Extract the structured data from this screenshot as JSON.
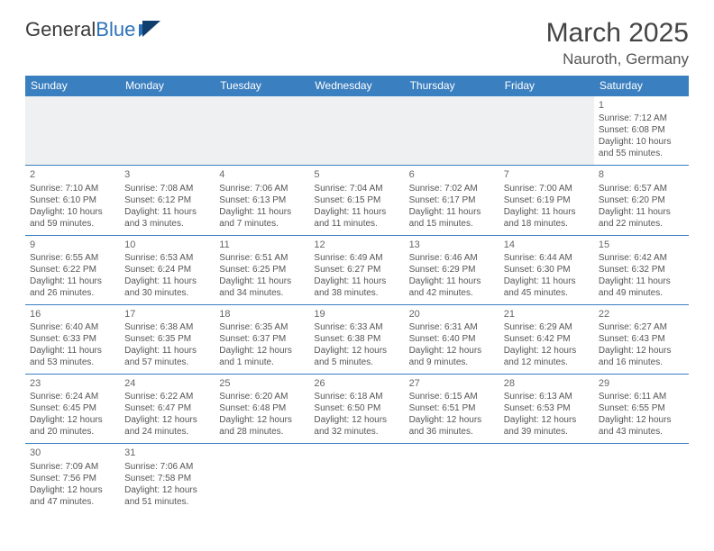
{
  "brand": {
    "word1": "General",
    "word2": "Blue"
  },
  "header": {
    "title": "March 2025",
    "location": "Nauroth, Germany"
  },
  "colors": {
    "header_bg": "#3a7fc0",
    "header_fg": "#ffffff",
    "cell_border": "#3a7fc0",
    "blank_bg": "#eef0f1",
    "text": "#555555",
    "brand_blue": "#2c71b8"
  },
  "weekdays": [
    "Sunday",
    "Monday",
    "Tuesday",
    "Wednesday",
    "Thursday",
    "Friday",
    "Saturday"
  ],
  "weeks": [
    [
      null,
      null,
      null,
      null,
      null,
      null,
      {
        "d": "1",
        "sr": "Sunrise: 7:12 AM",
        "ss": "Sunset: 6:08 PM",
        "dl": "Daylight: 10 hours and 55 minutes."
      }
    ],
    [
      {
        "d": "2",
        "sr": "Sunrise: 7:10 AM",
        "ss": "Sunset: 6:10 PM",
        "dl": "Daylight: 10 hours and 59 minutes."
      },
      {
        "d": "3",
        "sr": "Sunrise: 7:08 AM",
        "ss": "Sunset: 6:12 PM",
        "dl": "Daylight: 11 hours and 3 minutes."
      },
      {
        "d": "4",
        "sr": "Sunrise: 7:06 AM",
        "ss": "Sunset: 6:13 PM",
        "dl": "Daylight: 11 hours and 7 minutes."
      },
      {
        "d": "5",
        "sr": "Sunrise: 7:04 AM",
        "ss": "Sunset: 6:15 PM",
        "dl": "Daylight: 11 hours and 11 minutes."
      },
      {
        "d": "6",
        "sr": "Sunrise: 7:02 AM",
        "ss": "Sunset: 6:17 PM",
        "dl": "Daylight: 11 hours and 15 minutes."
      },
      {
        "d": "7",
        "sr": "Sunrise: 7:00 AM",
        "ss": "Sunset: 6:19 PM",
        "dl": "Daylight: 11 hours and 18 minutes."
      },
      {
        "d": "8",
        "sr": "Sunrise: 6:57 AM",
        "ss": "Sunset: 6:20 PM",
        "dl": "Daylight: 11 hours and 22 minutes."
      }
    ],
    [
      {
        "d": "9",
        "sr": "Sunrise: 6:55 AM",
        "ss": "Sunset: 6:22 PM",
        "dl": "Daylight: 11 hours and 26 minutes."
      },
      {
        "d": "10",
        "sr": "Sunrise: 6:53 AM",
        "ss": "Sunset: 6:24 PM",
        "dl": "Daylight: 11 hours and 30 minutes."
      },
      {
        "d": "11",
        "sr": "Sunrise: 6:51 AM",
        "ss": "Sunset: 6:25 PM",
        "dl": "Daylight: 11 hours and 34 minutes."
      },
      {
        "d": "12",
        "sr": "Sunrise: 6:49 AM",
        "ss": "Sunset: 6:27 PM",
        "dl": "Daylight: 11 hours and 38 minutes."
      },
      {
        "d": "13",
        "sr": "Sunrise: 6:46 AM",
        "ss": "Sunset: 6:29 PM",
        "dl": "Daylight: 11 hours and 42 minutes."
      },
      {
        "d": "14",
        "sr": "Sunrise: 6:44 AM",
        "ss": "Sunset: 6:30 PM",
        "dl": "Daylight: 11 hours and 45 minutes."
      },
      {
        "d": "15",
        "sr": "Sunrise: 6:42 AM",
        "ss": "Sunset: 6:32 PM",
        "dl": "Daylight: 11 hours and 49 minutes."
      }
    ],
    [
      {
        "d": "16",
        "sr": "Sunrise: 6:40 AM",
        "ss": "Sunset: 6:33 PM",
        "dl": "Daylight: 11 hours and 53 minutes."
      },
      {
        "d": "17",
        "sr": "Sunrise: 6:38 AM",
        "ss": "Sunset: 6:35 PM",
        "dl": "Daylight: 11 hours and 57 minutes."
      },
      {
        "d": "18",
        "sr": "Sunrise: 6:35 AM",
        "ss": "Sunset: 6:37 PM",
        "dl": "Daylight: 12 hours and 1 minute."
      },
      {
        "d": "19",
        "sr": "Sunrise: 6:33 AM",
        "ss": "Sunset: 6:38 PM",
        "dl": "Daylight: 12 hours and 5 minutes."
      },
      {
        "d": "20",
        "sr": "Sunrise: 6:31 AM",
        "ss": "Sunset: 6:40 PM",
        "dl": "Daylight: 12 hours and 9 minutes."
      },
      {
        "d": "21",
        "sr": "Sunrise: 6:29 AM",
        "ss": "Sunset: 6:42 PM",
        "dl": "Daylight: 12 hours and 12 minutes."
      },
      {
        "d": "22",
        "sr": "Sunrise: 6:27 AM",
        "ss": "Sunset: 6:43 PM",
        "dl": "Daylight: 12 hours and 16 minutes."
      }
    ],
    [
      {
        "d": "23",
        "sr": "Sunrise: 6:24 AM",
        "ss": "Sunset: 6:45 PM",
        "dl": "Daylight: 12 hours and 20 minutes."
      },
      {
        "d": "24",
        "sr": "Sunrise: 6:22 AM",
        "ss": "Sunset: 6:47 PM",
        "dl": "Daylight: 12 hours and 24 minutes."
      },
      {
        "d": "25",
        "sr": "Sunrise: 6:20 AM",
        "ss": "Sunset: 6:48 PM",
        "dl": "Daylight: 12 hours and 28 minutes."
      },
      {
        "d": "26",
        "sr": "Sunrise: 6:18 AM",
        "ss": "Sunset: 6:50 PM",
        "dl": "Daylight: 12 hours and 32 minutes."
      },
      {
        "d": "27",
        "sr": "Sunrise: 6:15 AM",
        "ss": "Sunset: 6:51 PM",
        "dl": "Daylight: 12 hours and 36 minutes."
      },
      {
        "d": "28",
        "sr": "Sunrise: 6:13 AM",
        "ss": "Sunset: 6:53 PM",
        "dl": "Daylight: 12 hours and 39 minutes."
      },
      {
        "d": "29",
        "sr": "Sunrise: 6:11 AM",
        "ss": "Sunset: 6:55 PM",
        "dl": "Daylight: 12 hours and 43 minutes."
      }
    ],
    [
      {
        "d": "30",
        "sr": "Sunrise: 7:09 AM",
        "ss": "Sunset: 7:56 PM",
        "dl": "Daylight: 12 hours and 47 minutes."
      },
      {
        "d": "31",
        "sr": "Sunrise: 7:06 AM",
        "ss": "Sunset: 7:58 PM",
        "dl": "Daylight: 12 hours and 51 minutes."
      },
      null,
      null,
      null,
      null,
      null
    ]
  ]
}
